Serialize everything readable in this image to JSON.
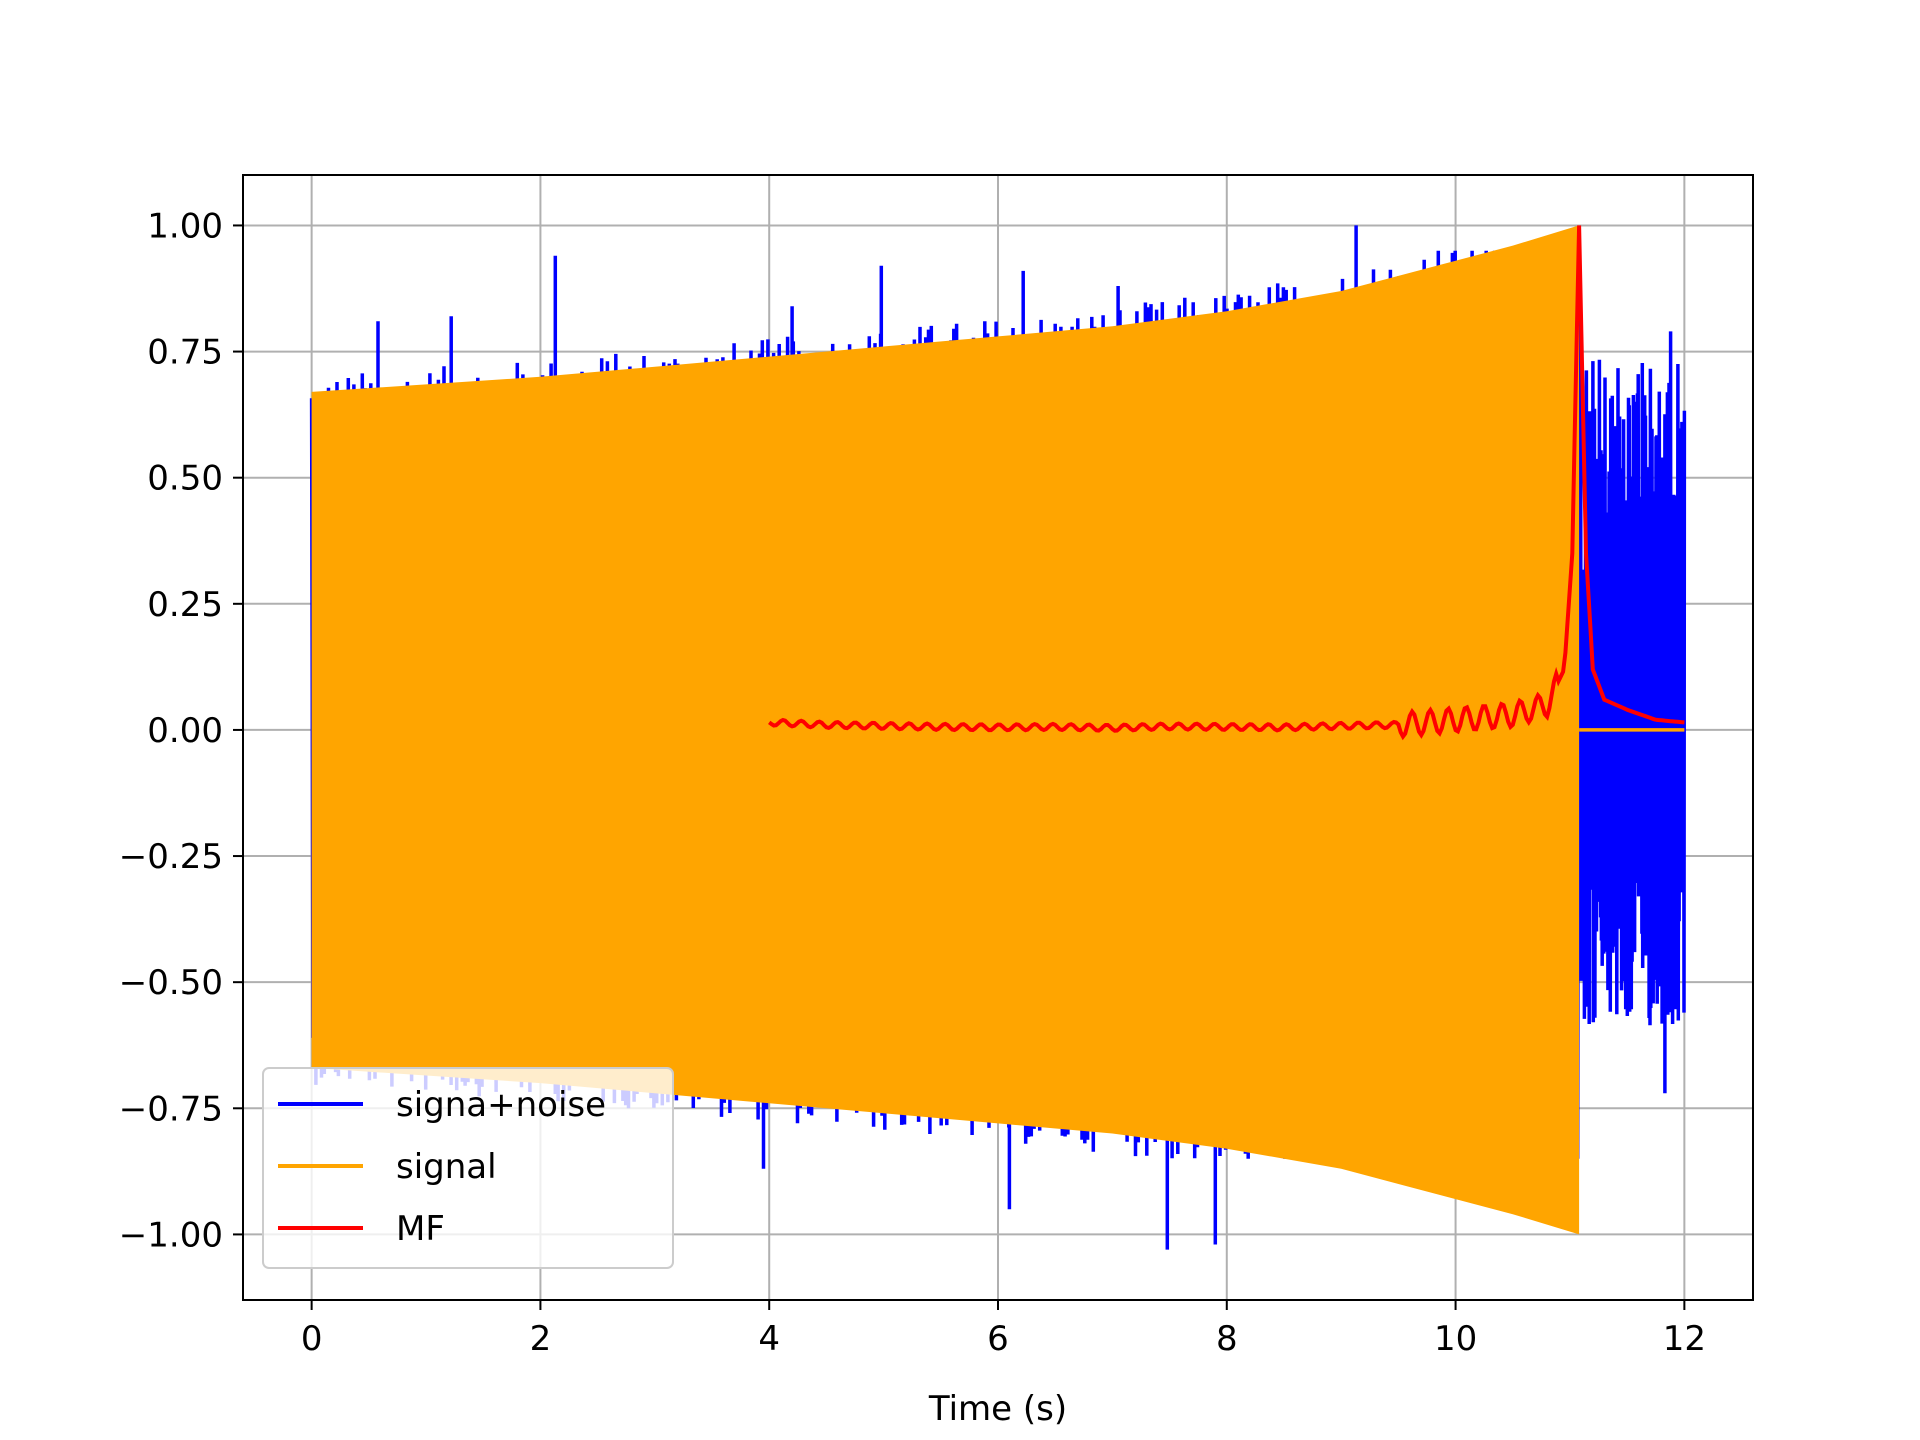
{
  "chart_data": {
    "type": "line",
    "title": "",
    "xlabel": "Time (s)",
    "ylabel": "",
    "xlim": [
      -0.6,
      12.6
    ],
    "ylim": [
      -1.13,
      1.1
    ],
    "grid": true,
    "legend_position": "lower-left",
    "x_ticks": [
      0,
      2,
      4,
      6,
      8,
      10,
      12
    ],
    "x_tick_labels": [
      "0",
      "2",
      "4",
      "6",
      "8",
      "10",
      "12"
    ],
    "y_ticks": [
      1.0,
      0.75,
      0.5,
      0.25,
      0.0,
      -0.25,
      -0.5,
      -0.75,
      -1.0
    ],
    "y_tick_labels": [
      "1.00",
      "0.75",
      "0.50",
      "0.25",
      "0.00",
      "−0.25",
      "−0.50",
      "−0.75",
      "−1.00"
    ],
    "series": [
      {
        "name": "signa+noise",
        "color": "#0000ff",
        "description_values": {
          "segment_during_signal": {
            "x_range": [
              0,
              11.08
            ],
            "typical_range": [
              -0.85,
              0.85
            ]
          },
          "spikes": [
            {
              "x": 0.58,
              "y": 0.81
            },
            {
              "x": 1.22,
              "y": 0.82
            },
            {
              "x": 2.13,
              "y": 0.94
            },
            {
              "x": 3.95,
              "y": -0.87
            },
            {
              "x": 4.2,
              "y": 0.84
            },
            {
              "x": 4.98,
              "y": 0.92
            },
            {
              "x": 6.1,
              "y": -0.95
            },
            {
              "x": 6.22,
              "y": 0.91
            },
            {
              "x": 7.05,
              "y": 0.88
            },
            {
              "x": 7.48,
              "y": -1.03
            },
            {
              "x": 7.9,
              "y": -1.02
            },
            {
              "x": 9.13,
              "y": 1.0
            },
            {
              "x": 10.35,
              "y": 0.78
            },
            {
              "x": 11.88,
              "y": 0.79
            },
            {
              "x": 11.83,
              "y": -0.72
            }
          ],
          "segment_after_signal": {
            "x_range": [
              11.08,
              12.0
            ],
            "typical_range": [
              -0.6,
              0.75
            ]
          }
        }
      },
      {
        "name": "signal",
        "color": "#ffa500",
        "envelope": {
          "x": [
            0,
            1,
            2,
            3,
            4,
            5,
            6,
            7,
            8,
            9,
            10,
            10.5,
            11.08
          ],
          "amplitude": [
            0.67,
            0.685,
            0.7,
            0.72,
            0.74,
            0.76,
            0.78,
            0.8,
            0.83,
            0.87,
            0.93,
            0.96,
            1.0
          ]
        },
        "after_end": {
          "x_range": [
            11.08,
            12.0
          ],
          "value": 0.0
        }
      },
      {
        "name": "MF",
        "color": "#ff0000",
        "x": [
          4.0,
          4.5,
          5.0,
          5.5,
          6.0,
          6.5,
          7.0,
          7.5,
          8.0,
          8.5,
          9.0,
          9.5,
          10.0,
          10.5,
          10.8,
          10.95,
          11.02,
          11.08,
          11.14,
          11.2,
          11.3,
          11.5,
          11.75,
          12.0
        ],
        "y": [
          0.015,
          0.01,
          0.008,
          0.006,
          0.005,
          0.006,
          0.004,
          0.007,
          0.006,
          0.005,
          0.008,
          0.01,
          0.02,
          0.03,
          0.05,
          0.12,
          0.35,
          1.0,
          0.35,
          0.12,
          0.06,
          0.04,
          0.02,
          0.015
        ]
      }
    ]
  }
}
